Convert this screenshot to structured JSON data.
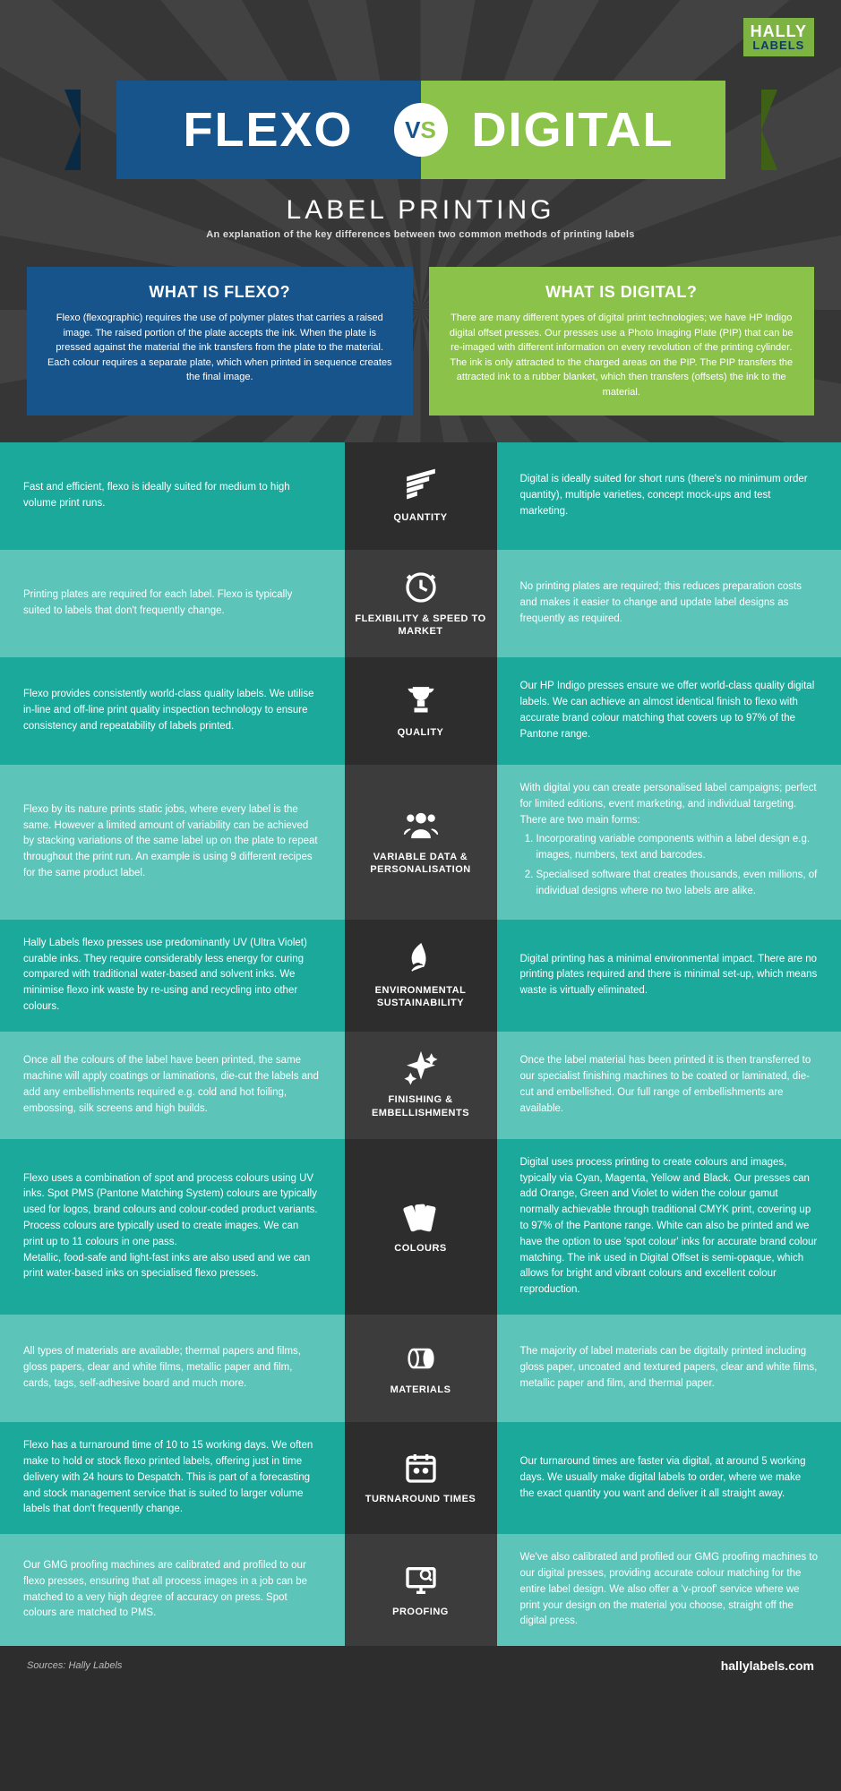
{
  "brand": {
    "top": "HALLY",
    "bottom": "LABELS"
  },
  "banner": {
    "left": "FLEXO",
    "right": "DIGITAL",
    "vs_left": "V",
    "vs_right": "S"
  },
  "subtitle": {
    "title": "LABEL PRINTING",
    "tagline": "An explanation of the key differences between two common methods of printing labels"
  },
  "intro": {
    "flexo_title": "WHAT IS FLEXO?",
    "flexo_body": "Flexo (flexographic) requires the use of polymer plates that carries a raised image. The raised portion of the plate accepts the ink. When the plate is pressed against the material the ink transfers from the plate to the material. Each colour requires a separate plate, which when printed in sequence creates the final image.",
    "digital_title": "WHAT IS DIGITAL?",
    "digital_body": "There are many different types of digital print technologies; we have HP Indigo digital offset presses. Our presses use a Photo Imaging Plate (PIP) that can be re-imaged with different information on every revolution of the printing cylinder. The ink is only attracted to the charged areas on the PIP. The PIP transfers the attracted ink to a rubber blanket, which then transfers (offsets) the ink to the material."
  },
  "rows": [
    {
      "label": "QUANTITY",
      "left": "Fast and efficient, flexo is ideally suited for medium to high volume print runs.",
      "right": "Digital is ideally suited for short runs (there's no minimum order quantity), multiple varieties, concept mock-ups and test marketing."
    },
    {
      "label": "FLEXIBILITY & SPEED TO MARKET",
      "left": "Printing plates are required for each label. Flexo is typically suited to labels that don't frequently change.",
      "right": "No printing plates are required; this reduces preparation costs and makes it easier to change and update label designs as frequently as required."
    },
    {
      "label": "QUALITY",
      "left": "Flexo provides consistently world-class quality labels. We utilise in-line and off-line print quality inspection technology to ensure consistency and repeatability of labels printed.",
      "right": "Our HP Indigo presses ensure we offer world-class quality digital labels. We can achieve an almost identical finish to flexo with accurate brand colour matching that covers up to 97% of the Pantone range."
    },
    {
      "label": "VARIABLE DATA & PERSONALISATION",
      "left": "Flexo by its nature prints static jobs, where every label is the same. However a limited amount of variability can be achieved by stacking variations of the same label up on the plate to repeat throughout the print run. An example is using 9 different recipes for the same product label.",
      "right_intro": "With digital you can create personalised label campaigns; perfect for limited editions, event marketing, and individual targeting. There are two main forms:",
      "right_list": [
        "Incorporating variable components within a label design e.g. images, numbers, text and barcodes.",
        "Specialised software that creates thousands, even millions, of individual designs where no two labels are alike."
      ]
    },
    {
      "label": "ENVIRONMENTAL SUSTAINABILITY",
      "left": "Hally Labels flexo presses use predominantly UV (Ultra Violet) curable inks. They require considerably less energy for curing compared with traditional water-based and solvent inks. We minimise flexo ink waste by re-using and recycling into other colours.",
      "right": "Digital printing has a minimal environmental impact. There are no printing plates required and there is minimal set-up, which means waste is virtually eliminated."
    },
    {
      "label": "FINISHING & EMBELLISHMENTS",
      "left": "Once all the colours of the label have been printed, the same machine will apply coatings or laminations, die-cut the labels and add any embellishments required e.g. cold and hot foiling, embossing, silk screens and high builds.",
      "right": "Once the label material has been printed it is then transferred to our specialist finishing machines to be coated or laminated, die-cut and embellished. Our full range of embellishments are available."
    },
    {
      "label": "COLOURS",
      "left": "Flexo uses a combination of spot and process colours using UV inks. Spot PMS (Pantone Matching System) colours are typically used for logos, brand colours and colour-coded product variants. Process colours are typically used to create images. We can print up to 11 colours in one pass.\nMetallic, food-safe and light-fast inks are also used and we can print water-based inks on specialised flexo presses.",
      "right": "Digital uses process printing to create colours and images, typically via Cyan, Magenta, Yellow and Black. Our presses can add Orange, Green and Violet to widen the colour gamut normally achievable through traditional CMYK print, covering up to 97% of the Pantone range. White can also be printed and we have the option to use 'spot colour' inks for accurate brand colour matching. The ink used in Digital Offset is semi-opaque, which allows for bright and vibrant colours and excellent colour reproduction."
    },
    {
      "label": "MATERIALS",
      "left": "All types of materials are available; thermal papers and films, gloss papers, clear and white films, metallic paper and film, cards, tags, self-adhesive board and much more.",
      "right": "The majority of label materials can be digitally printed including gloss paper, uncoated and textured papers, clear and white films, metallic paper and film, and thermal paper."
    },
    {
      "label": "TURNAROUND TIMES",
      "left": "Flexo has a turnaround time of 10 to 15 working days. We often make to hold or stock flexo printed labels, offering just in time delivery with 24 hours to Despatch. This is part of a forecasting and stock management service that is suited to larger volume labels that don't frequently change.",
      "right": "Our turnaround times are faster via digital, at around 5 working days. We usually make digital labels to order, where we make the exact quantity you want and deliver it all straight away."
    },
    {
      "label": "PROOFING",
      "left": "Our GMG proofing machines are calibrated and profiled to our flexo presses, ensuring that all process images in a job can be matched to a very high degree of accuracy on press. Spot colours are matched to PMS.",
      "right": "We've also calibrated and profiled our GMG proofing machines to our digital presses, providing accurate colour matching for the entire label design. We also offer a 'v-proof' service where we print your design on the material you choose, straight off the digital press."
    }
  ],
  "footer": {
    "sources": "Sources: Hally Labels",
    "url": "hallylabels.com"
  },
  "colors": {
    "flexo": "#17548b",
    "digital": "#8bc34a",
    "row_a": "#1aa99a",
    "row_b": "#5cc4b8",
    "mid": "#2d2d2d",
    "bg": "#3a3a3a"
  }
}
